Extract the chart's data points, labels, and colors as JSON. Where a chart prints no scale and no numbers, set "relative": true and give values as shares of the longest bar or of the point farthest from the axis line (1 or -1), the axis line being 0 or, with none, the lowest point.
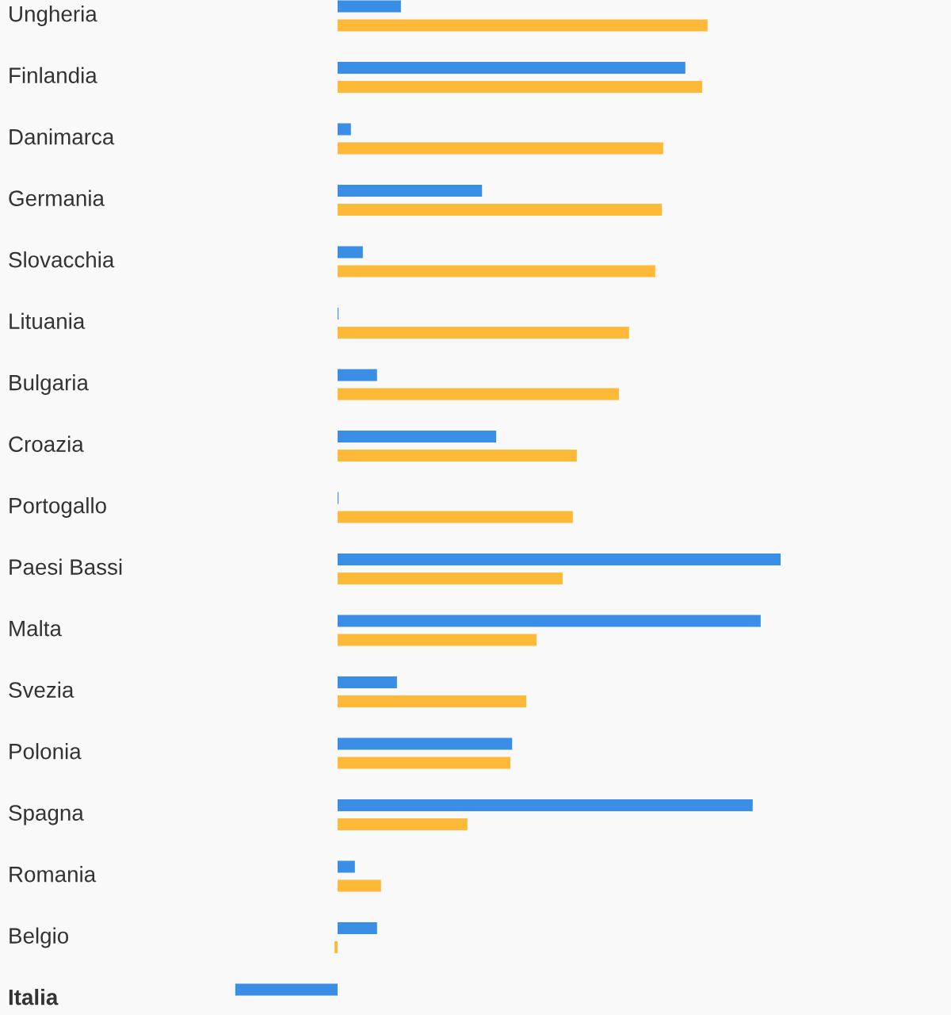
{
  "chart_data": {
    "type": "bar",
    "orientation": "horizontal",
    "relative": true,
    "grid": false,
    "legend": false,
    "categories": [
      "Ungheria",
      "Finlandia",
      "Danimarca",
      "Germania",
      "Slovacchia",
      "Lituania",
      "Bulgaria",
      "Croazia",
      "Portogallo",
      "Paesi Bassi",
      "Malta",
      "Svezia",
      "Polonia",
      "Spagna",
      "Romania",
      "Belgio",
      "Italia"
    ],
    "series": [
      {
        "color": "#3a8ee6",
        "values": [
          0.143,
          0.785,
          0.03,
          0.326,
          0.057,
          0.002,
          0.089,
          0.358,
          0.002,
          1.0,
          0.955,
          0.134,
          0.394,
          0.937,
          0.039,
          0.089,
          -0.231
        ]
      },
      {
        "color": "#ffb938",
        "values": [
          0.835,
          0.823,
          0.735,
          0.732,
          0.717,
          0.658,
          0.635,
          0.54,
          0.531,
          0.508,
          0.449,
          0.426,
          0.39,
          0.293,
          0.098,
          -0.007,
          null
        ]
      }
    ]
  }
}
